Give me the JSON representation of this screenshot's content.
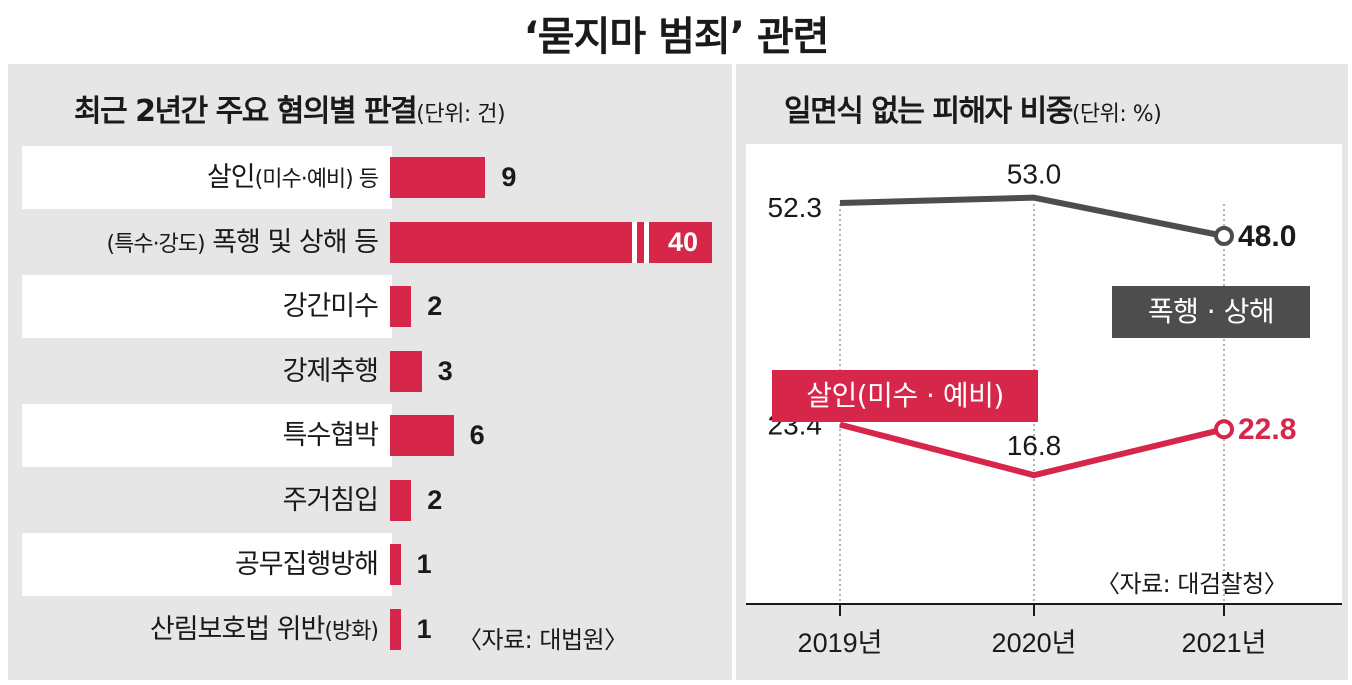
{
  "title": "‘묻지마 범죄’ 관련",
  "colors": {
    "bar": "#d6264a",
    "assault_line": "#4d4d4d",
    "murder_line": "#d6264a",
    "panel_bg": "#e6e6e6"
  },
  "left": {
    "title": "최근 2년간 주요 혐의별 판결",
    "unit": "(단위: 건)",
    "rows": [
      {
        "label": "살인",
        "label_small": "(미수·예비)  등",
        "value": "9"
      },
      {
        "label": "",
        "label_small": "(특수·강도)",
        "label_after": " 폭행 및 상해 등",
        "value": "40"
      },
      {
        "label": "강간미수",
        "label_small": "",
        "value": "2"
      },
      {
        "label": "강제추행",
        "label_small": "",
        "value": "3"
      },
      {
        "label": "특수협박",
        "label_small": "",
        "value": "6"
      },
      {
        "label": "주거침입",
        "label_small": "",
        "value": "2"
      },
      {
        "label": "공무집행방해",
        "label_small": "",
        "value": "1"
      },
      {
        "label": "산림보호법 위반",
        "label_small": "(방화)",
        "value": "1"
      }
    ],
    "source": "〈자료: 대법원〉"
  },
  "right": {
    "title": "일면식 없는 피해자 비중",
    "unit": "(단위: %)",
    "source": "〈자료: 대검찰청〉"
  },
  "chart_data": [
    {
      "type": "bar",
      "title": "최근 2년간 주요 혐의별 판결",
      "unit": "건",
      "categories": [
        "살인(미수·예비) 등",
        "(특수·강도) 폭행 및 상해 등",
        "강간미수",
        "강제추행",
        "특수협박",
        "주거침입",
        "공무집행방해",
        "산림보호법 위반(방화)"
      ],
      "values": [
        9,
        40,
        2,
        3,
        6,
        2,
        1,
        1
      ],
      "orientation": "horizontal",
      "broken_axis": true
    },
    {
      "type": "line",
      "title": "일면식 없는 피해자 비중",
      "unit": "%",
      "x": [
        "2019년",
        "2020년",
        "2021년"
      ],
      "ylim": [
        0,
        60
      ],
      "series": [
        {
          "name": "폭행 · 상해",
          "values": [
            52.3,
            53.0,
            48.0
          ],
          "labels": [
            "52.3",
            "53.0",
            "48.0"
          ],
          "color": "#4d4d4d"
        },
        {
          "name": "살인(미수 · 예비)",
          "values": [
            23.4,
            16.8,
            22.8
          ],
          "labels": [
            "23.4",
            "16.8",
            "22.8"
          ],
          "color": "#d6264a"
        }
      ]
    }
  ]
}
